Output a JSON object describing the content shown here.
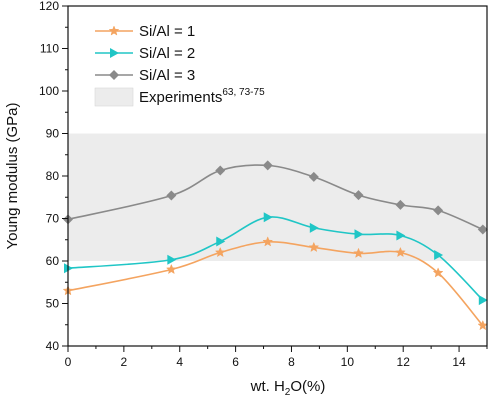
{
  "chart_data": {
    "type": "line",
    "xlabel_prefix": "wt. H",
    "xlabel_sub": "2",
    "xlabel_suffix": "O(%)",
    "ylabel": "Young modulus (GPa)",
    "xlim": [
      0,
      15
    ],
    "ylim": [
      40,
      120
    ],
    "xticks": [
      0,
      1,
      2,
      3,
      4,
      5,
      6,
      7,
      8,
      9,
      10,
      11,
      12,
      13,
      14,
      15
    ],
    "yticks": [
      40,
      50,
      60,
      70,
      80,
      90,
      100,
      110,
      120
    ],
    "band": {
      "label": "Experiments",
      "label_sup": "63, 73-75",
      "y_range": [
        60,
        90
      ],
      "color": "#ececec"
    },
    "legend_position": "top-left",
    "grid": false,
    "series": [
      {
        "name": "Si/Al = 1",
        "color": "#f4a460",
        "marker": "star",
        "x": [
          0,
          3.7,
          5.45,
          7.15,
          8.8,
          10.4,
          11.9,
          13.25,
          14.85
        ],
        "y": [
          53,
          58,
          62,
          64.5,
          63.2,
          61.8,
          62,
          57.2,
          44.8
        ]
      },
      {
        "name": "Si/Al = 2",
        "color": "#20c6c6",
        "marker": "triangle-right",
        "x": [
          0,
          3.7,
          5.45,
          7.15,
          8.8,
          10.4,
          11.9,
          13.25,
          14.85
        ],
        "y": [
          58.3,
          60.3,
          64.6,
          70.3,
          67.8,
          66.3,
          66,
          61.4,
          50.8
        ]
      },
      {
        "name": "Si/Al = 3",
        "color": "#8a8a8a",
        "marker": "diamond",
        "x": [
          0,
          3.7,
          5.45,
          7.15,
          8.8,
          10.4,
          11.9,
          13.25,
          14.85
        ],
        "y": [
          69.8,
          75.4,
          81.3,
          82.5,
          79.8,
          75.5,
          73.2,
          71.9,
          67.4
        ]
      }
    ]
  }
}
